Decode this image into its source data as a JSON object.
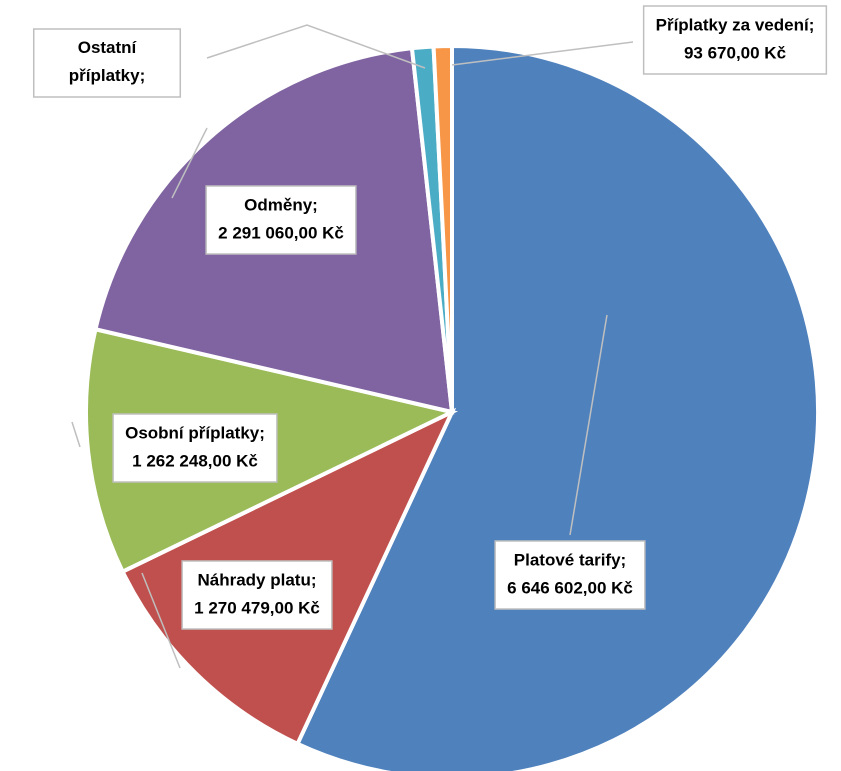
{
  "chart_data": {
    "type": "pie",
    "categories": [
      "Platové tarify;",
      "Náhrady platu;",
      "Osobní příplatky;",
      "Odměny;",
      "Ostatní příplatky;",
      "Příplatky za vedení;"
    ],
    "values": [
      6646602,
      1270479,
      1262248,
      2291060,
      110000,
      93670
    ],
    "value_labels": [
      "6 646 602,00 Kč",
      "1 270 479,00 Kč",
      "1 262 248,00 Kč",
      "2 291 060,00 Kč",
      null,
      "93 670,00 Kč"
    ],
    "colors": [
      "#4f81bd",
      "#c0504d",
      "#9bbb59",
      "#8064a2",
      "#4bacc6",
      "#f79646"
    ]
  }
}
